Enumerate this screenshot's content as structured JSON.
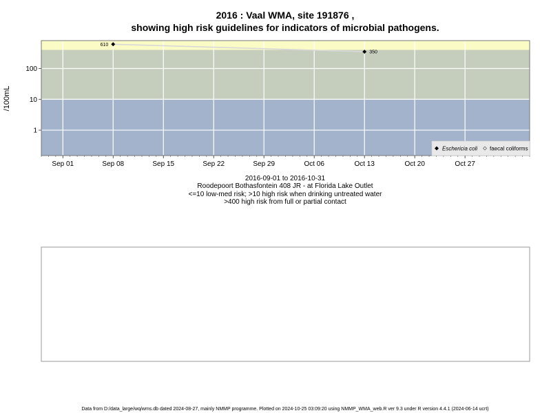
{
  "title_line1": "2016 : Vaal WMA, site 191876 ,",
  "title_line2": "showing high risk guidelines for indicators of microbial pathogens.",
  "subtitle": [
    "2016-09-01 to 2016-10-31",
    "Roodepoort Bothasfontein 408 JR - at Florida Lake Outlet",
    "<=10 low-med risk; >10 high risk when drinking untreated water",
    ">400 high risk from full or partial contact"
  ],
  "footer": "Data from D:/data_large/wq/wms.db dated 2024-08-27, mainly NMMP programme. Plotted on 2024-10-25 03:09:20 using NMMP_WMA_web.R ver 9.3 under R version 4.4.1 (2024-06-14 ucrt)",
  "colors": {
    "low_band": "#a2b3cb",
    "mid_band": "#c5cebd",
    "high_band": "#fbfbc5",
    "grid": "#ffffff",
    "line": "#d8d8d8",
    "point": "#000000"
  },
  "chart_data": {
    "type": "line",
    "ylabel": "/100mL",
    "y_scale": "log",
    "x_range": [
      "2016-08-29",
      "2016-11-05"
    ],
    "ylim": [
      0.15,
      800
    ],
    "y_ticks": [
      {
        "value": 1,
        "label": "1"
      },
      {
        "value": 10,
        "label": "10"
      },
      {
        "value": 100,
        "label": "100"
      }
    ],
    "x_ticks": [
      {
        "date": "2016-09-01",
        "label": "Sep 01"
      },
      {
        "date": "2016-09-08",
        "label": "Sep 08"
      },
      {
        "date": "2016-09-15",
        "label": "Sep 15"
      },
      {
        "date": "2016-09-22",
        "label": "Sep 22"
      },
      {
        "date": "2016-09-29",
        "label": "Sep 29"
      },
      {
        "date": "2016-10-06",
        "label": "Oct 06"
      },
      {
        "date": "2016-10-13",
        "label": "Oct 13"
      },
      {
        "date": "2016-10-20",
        "label": "Oct 20"
      },
      {
        "date": "2016-10-27",
        "label": "Oct 27"
      }
    ],
    "bands": [
      {
        "from": 0.15,
        "to": 10,
        "color": "#a2b3cb"
      },
      {
        "from": 10,
        "to": 400,
        "color": "#c5cebd"
      },
      {
        "from": 400,
        "to": 800,
        "color": "#fbfbc5"
      }
    ],
    "series": [
      {
        "name": "Eschericia coli",
        "points": [
          {
            "date": "2016-09-08",
            "value": 610,
            "label": "610"
          },
          {
            "date": "2016-10-13",
            "value": 350,
            "label": "350"
          }
        ]
      },
      {
        "name": "faecal coliforms",
        "points": []
      }
    ],
    "legend_position": "bottom-right",
    "grid": true
  }
}
